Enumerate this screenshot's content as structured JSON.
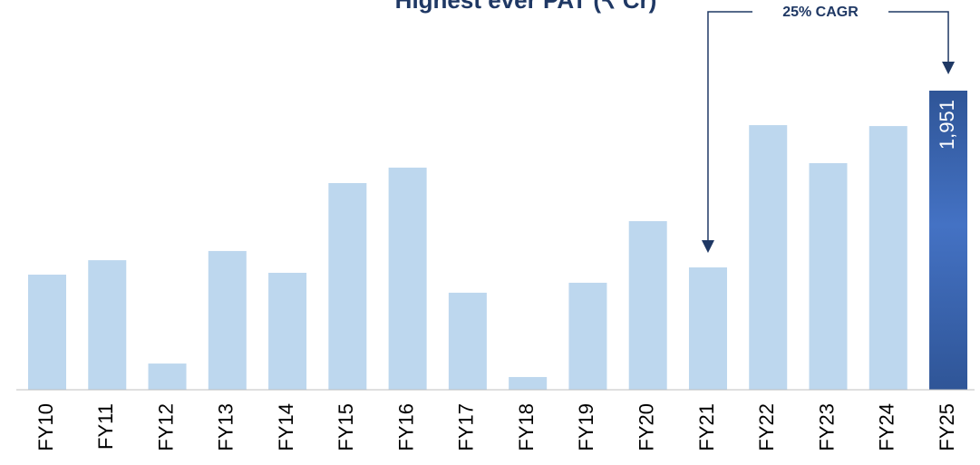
{
  "chart_data": {
    "type": "bar",
    "title": "Highest ever PAT (₹ Cr)",
    "categories": [
      "FY10",
      "FY11",
      "FY12",
      "FY13",
      "FY14",
      "FY15",
      "FY16",
      "FY17",
      "FY18",
      "FY19",
      "FY20",
      "FY21",
      "FY22",
      "FY23",
      "FY24",
      "FY25"
    ],
    "values": [
      751,
      845,
      171,
      905,
      763,
      1348,
      1449,
      633,
      83,
      698,
      1100,
      798,
      1726,
      1478,
      1720,
      1951
    ],
    "value_labels": [
      null,
      null,
      null,
      null,
      null,
      null,
      null,
      null,
      null,
      null,
      null,
      null,
      null,
      null,
      null,
      "1,951"
    ],
    "colors": [
      "#bdd7ee",
      "#bdd7ee",
      "#bdd7ee",
      "#bdd7ee",
      "#bdd7ee",
      "#bdd7ee",
      "#bdd7ee",
      "#bdd7ee",
      "#bdd7ee",
      "#bdd7ee",
      "#bdd7ee",
      "#bdd7ee",
      "#bdd7ee",
      "#bdd7ee",
      "#bdd7ee",
      "#2f5597"
    ],
    "annotation": {
      "text": "25% CAGR",
      "from": "FY21",
      "to": "FY25",
      "color": "#1f3864"
    }
  }
}
